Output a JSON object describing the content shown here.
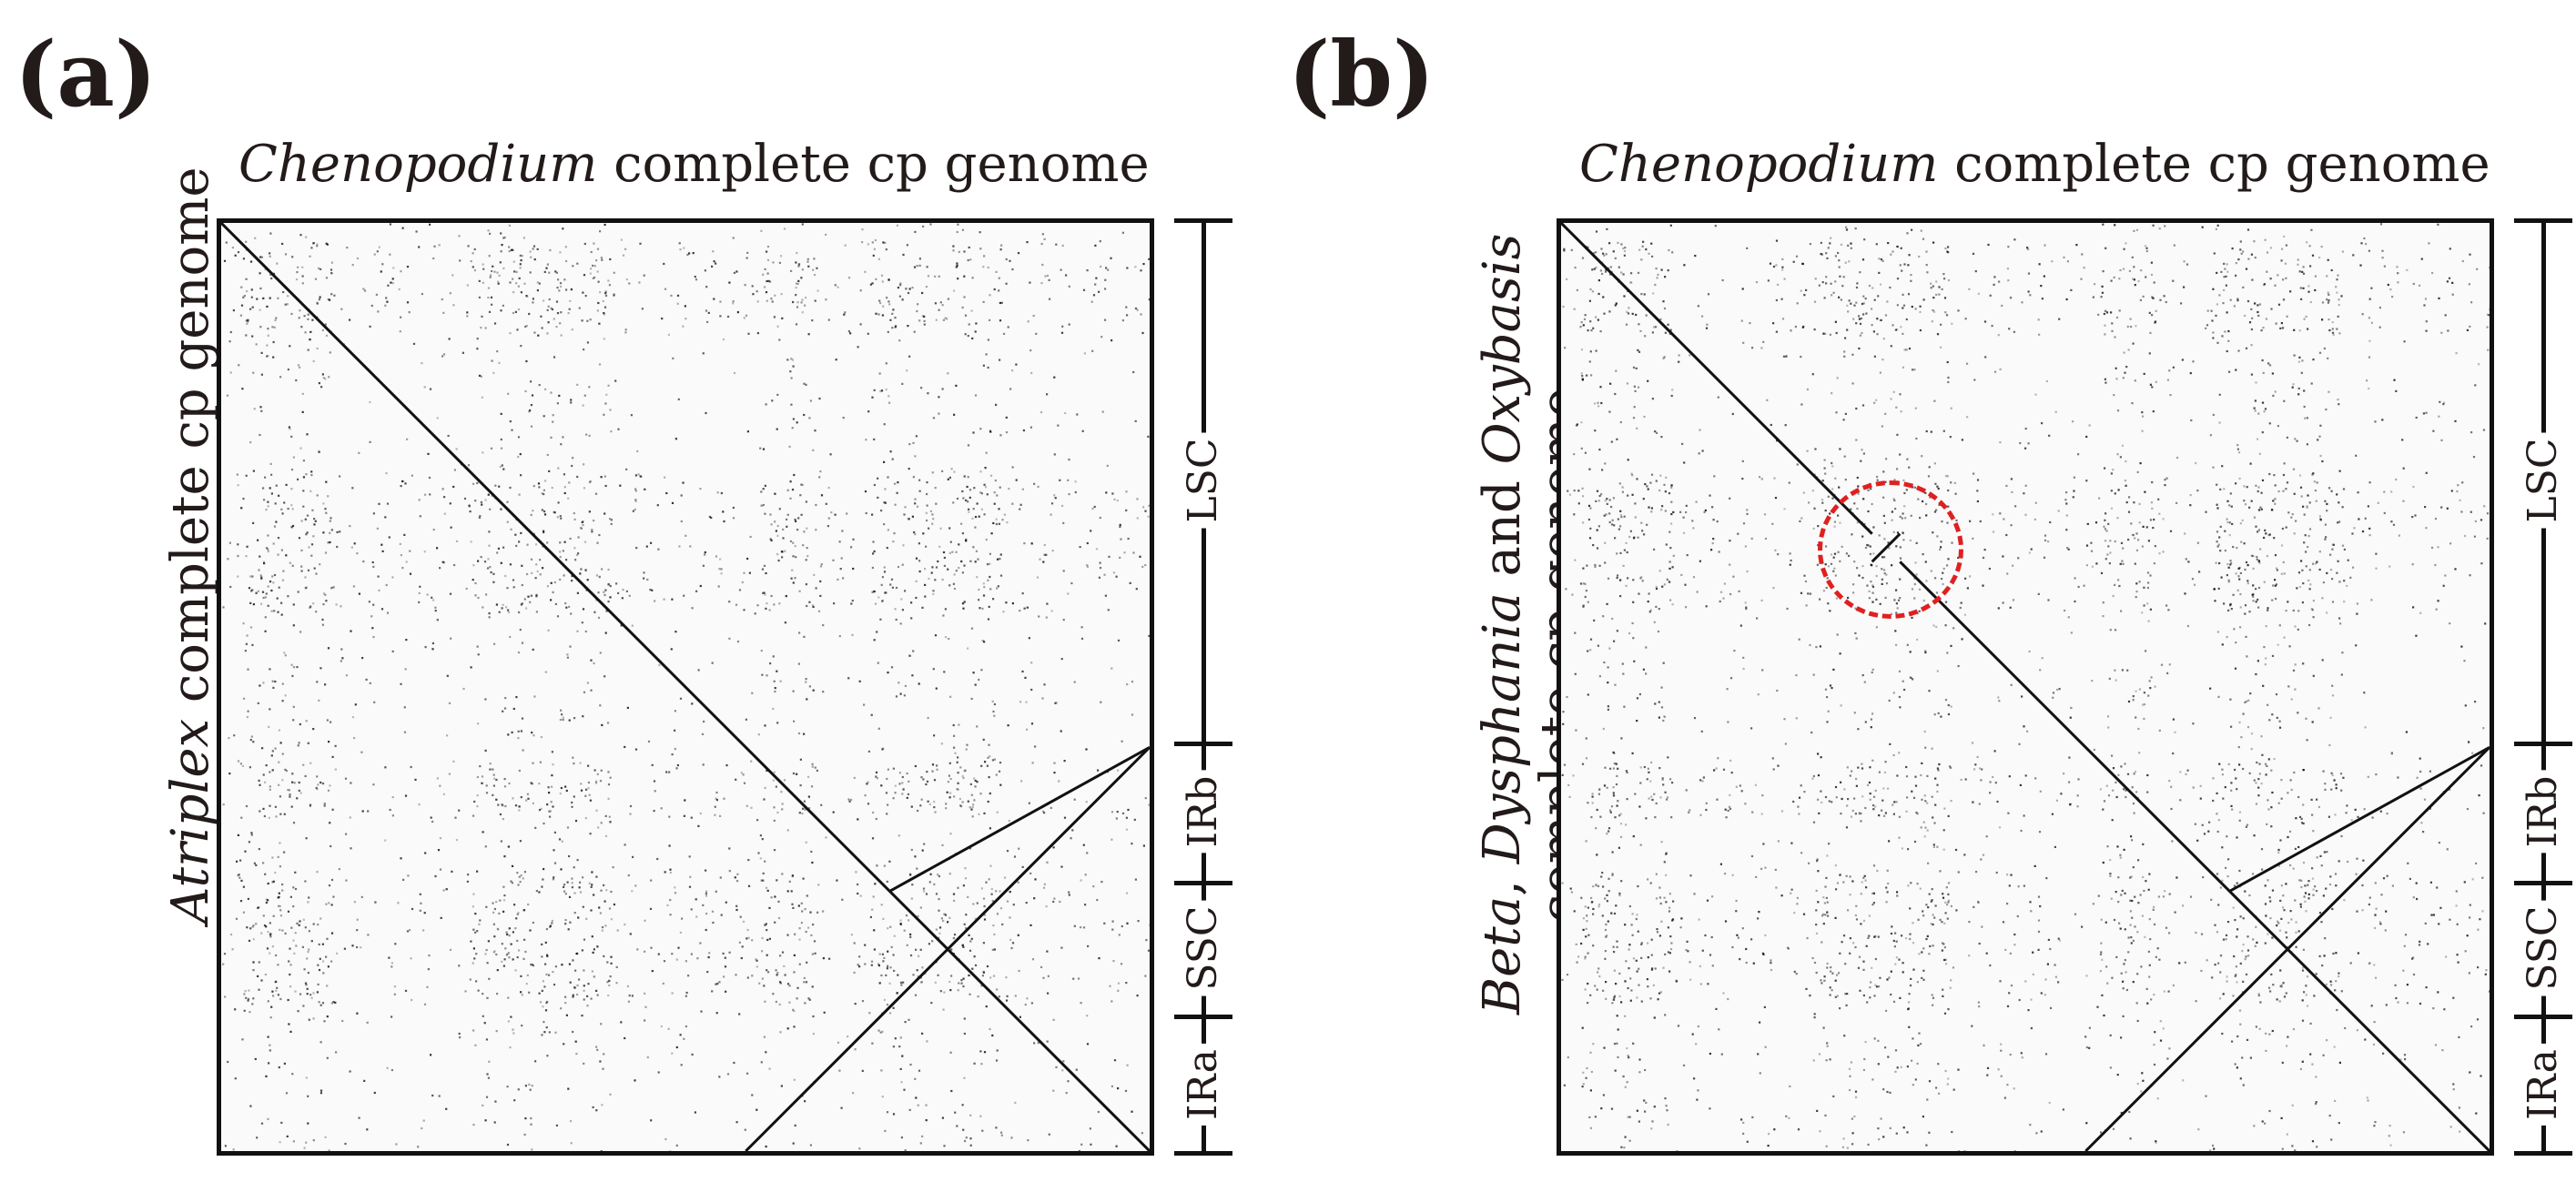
{
  "panels": [
    {
      "label": "(a)",
      "top_title": {
        "italic": "Chenopodium",
        "rest": " complete cp genome"
      },
      "side_title": {
        "line1_italic": "Atriplex",
        "line1_rest": " complete cp genome"
      },
      "regions": [
        "LSC",
        "IRb",
        "SSC",
        "IRa"
      ],
      "highlight": false
    },
    {
      "label": "(b)",
      "top_title": {
        "italic": "Chenopodium",
        "rest": " complete cp genome"
      },
      "side_title": {
        "line1_italic_a": "Beta",
        "line1_sep1": ", ",
        "line1_italic_b": "Dysphania",
        "line1_sep2": " and ",
        "line1_italic_c": "Oxybasis",
        "line2": "complete cp genome"
      },
      "regions": [
        "LSC",
        "IRb",
        "SSC",
        "IRa"
      ],
      "highlight": true
    }
  ],
  "colors": {
    "diagonal": "#111111",
    "noise": "#000000",
    "highlight": "#e02020",
    "text": "#231a1a"
  }
}
